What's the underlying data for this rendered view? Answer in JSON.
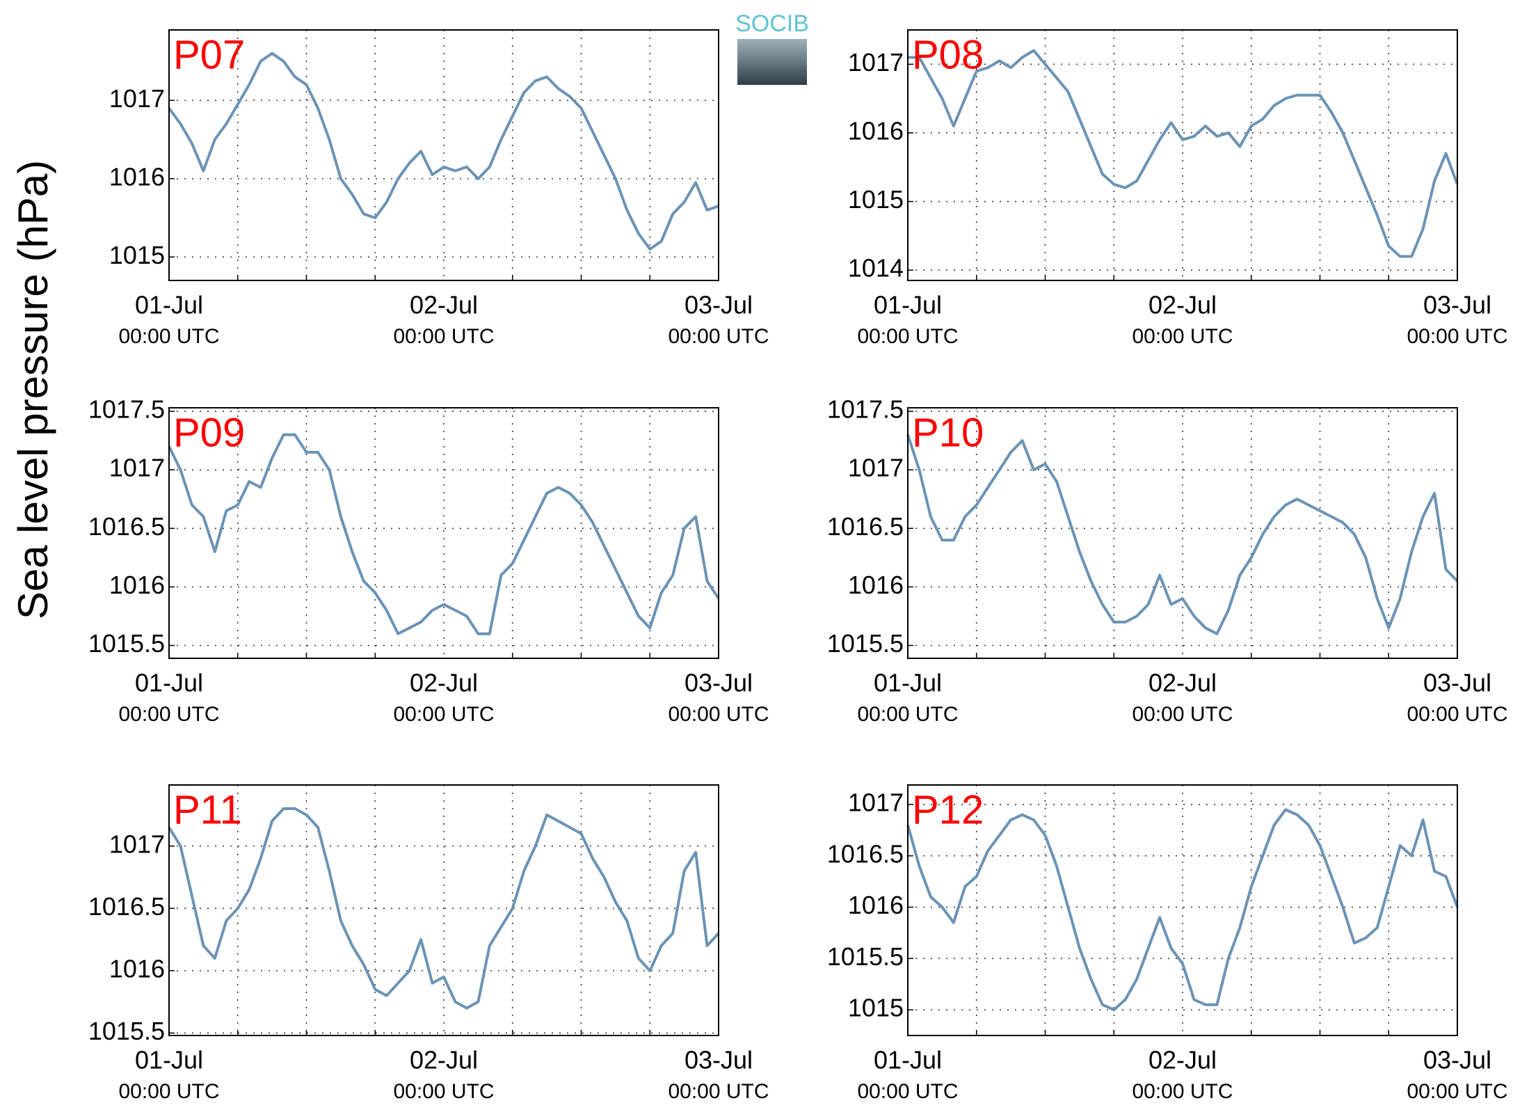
{
  "ylabel": "Sea level pressure (hPa)",
  "logo": "SOCIB",
  "chart_data": [
    {
      "type": "line",
      "title": "P07",
      "color": "#6b93b5",
      "x": [
        0,
        1,
        2,
        3,
        4,
        5,
        6,
        7,
        8,
        9,
        10,
        11,
        12,
        13,
        14,
        15,
        16,
        17,
        18,
        19,
        20,
        21,
        22,
        23,
        24,
        25,
        26,
        27,
        28,
        29,
        30,
        31,
        32,
        33,
        34,
        35,
        36,
        37,
        38,
        39,
        40,
        41,
        42,
        43,
        44,
        45,
        46,
        47,
        48
      ],
      "values": [
        1016.9,
        1016.7,
        1016.45,
        1016.1,
        1016.5,
        1016.7,
        1016.95,
        1017.2,
        1017.5,
        1017.6,
        1017.5,
        1017.3,
        1017.2,
        1016.9,
        1016.5,
        1016.0,
        1015.8,
        1015.55,
        1015.5,
        1015.7,
        1016.0,
        1016.2,
        1016.35,
        1016.05,
        1016.15,
        1016.1,
        1016.15,
        1016.0,
        1016.15,
        1016.5,
        1016.8,
        1017.1,
        1017.25,
        1017.3,
        1017.15,
        1017.05,
        1016.9,
        1016.6,
        1016.3,
        1016.0,
        1015.6,
        1015.3,
        1015.1,
        1015.2,
        1015.55,
        1015.7,
        1015.95,
        1015.6,
        1015.65
      ],
      "xlim": [
        0,
        48
      ],
      "xticks": [
        {
          "value": 0,
          "label": "01-Jul"
        },
        {
          "value": 24,
          "label": "02-Jul"
        },
        {
          "value": 48,
          "label": "03-Jul"
        }
      ],
      "xtick_sublabels": [
        "00:00 UTC",
        "00:00 UTC",
        "00:00 UTC"
      ],
      "xminor": [
        6,
        12,
        18,
        30,
        36,
        42
      ],
      "ylim": [
        1014.7,
        1017.9
      ],
      "yticks": [
        1015,
        1016,
        1017
      ],
      "grid": true
    },
    {
      "type": "line",
      "title": "P08",
      "color": "#6b93b5",
      "x": [
        0,
        1,
        2,
        3,
        4,
        5,
        6,
        7,
        8,
        9,
        10,
        11,
        12,
        13,
        14,
        15,
        16,
        17,
        18,
        19,
        20,
        21,
        22,
        23,
        24,
        25,
        26,
        27,
        28,
        29,
        30,
        31,
        32,
        33,
        34,
        35,
        36,
        37,
        38,
        39,
        40,
        41,
        42,
        43,
        44,
        45,
        46,
        47,
        48
      ],
      "values": [
        1017.1,
        1017.1,
        1016.8,
        1016.5,
        1016.1,
        1016.5,
        1016.9,
        1016.95,
        1017.05,
        1016.95,
        1017.1,
        1017.2,
        1017.0,
        1016.8,
        1016.6,
        1016.2,
        1015.8,
        1015.4,
        1015.25,
        1015.2,
        1015.3,
        1015.6,
        1015.9,
        1016.15,
        1015.9,
        1015.95,
        1016.1,
        1015.95,
        1016.0,
        1015.8,
        1016.1,
        1016.2,
        1016.4,
        1016.5,
        1016.55,
        1016.55,
        1016.55,
        1016.3,
        1016.0,
        1015.6,
        1015.2,
        1014.8,
        1014.35,
        1014.2,
        1014.2,
        1014.6,
        1015.3,
        1015.7,
        1015.25
      ],
      "xlim": [
        0,
        48
      ],
      "xticks": [
        {
          "value": 0,
          "label": "01-Jul"
        },
        {
          "value": 24,
          "label": "02-Jul"
        },
        {
          "value": 48,
          "label": "03-Jul"
        }
      ],
      "xtick_sublabels": [
        "00:00 UTC",
        "00:00 UTC",
        "00:00 UTC"
      ],
      "xminor": [
        6,
        12,
        18,
        30,
        36,
        42
      ],
      "ylim": [
        1013.85,
        1017.5
      ],
      "yticks": [
        1014,
        1015,
        1016,
        1017
      ],
      "grid": true
    },
    {
      "type": "line",
      "title": "P09",
      "color": "#6b93b5",
      "x": [
        0,
        1,
        2,
        3,
        4,
        5,
        6,
        7,
        8,
        9,
        10,
        11,
        12,
        13,
        14,
        15,
        16,
        17,
        18,
        19,
        20,
        21,
        22,
        23,
        24,
        25,
        26,
        27,
        28,
        29,
        30,
        31,
        32,
        33,
        34,
        35,
        36,
        37,
        38,
        39,
        40,
        41,
        42,
        43,
        44,
        45,
        46,
        47,
        48
      ],
      "values": [
        1017.2,
        1017.0,
        1016.7,
        1016.6,
        1016.3,
        1016.65,
        1016.7,
        1016.9,
        1016.85,
        1017.1,
        1017.3,
        1017.3,
        1017.15,
        1017.15,
        1017.0,
        1016.6,
        1016.3,
        1016.05,
        1015.95,
        1015.8,
        1015.6,
        1015.65,
        1015.7,
        1015.8,
        1015.85,
        1015.8,
        1015.75,
        1015.6,
        1015.6,
        1016.1,
        1016.2,
        1016.4,
        1016.6,
        1016.8,
        1016.85,
        1016.8,
        1016.7,
        1016.55,
        1016.35,
        1016.15,
        1015.95,
        1015.75,
        1015.65,
        1015.95,
        1016.1,
        1016.5,
        1016.6,
        1016.05,
        1015.9
      ],
      "xlim": [
        0,
        48
      ],
      "xticks": [
        {
          "value": 0,
          "label": "01-Jul"
        },
        {
          "value": 24,
          "label": "02-Jul"
        },
        {
          "value": 48,
          "label": "03-Jul"
        }
      ],
      "xtick_sublabels": [
        "00:00 UTC",
        "00:00 UTC",
        "00:00 UTC"
      ],
      "xminor": [
        6,
        12,
        18,
        30,
        36,
        42
      ],
      "ylim": [
        1015.39,
        1017.53
      ],
      "yticks": [
        1015.5,
        1016,
        1016.5,
        1017,
        1017.5
      ],
      "grid": true
    },
    {
      "type": "line",
      "title": "P10",
      "color": "#6b93b5",
      "x": [
        0,
        1,
        2,
        3,
        4,
        5,
        6,
        7,
        8,
        9,
        10,
        11,
        12,
        13,
        14,
        15,
        16,
        17,
        18,
        19,
        20,
        21,
        22,
        23,
        24,
        25,
        26,
        27,
        28,
        29,
        30,
        31,
        32,
        33,
        34,
        35,
        36,
        37,
        38,
        39,
        40,
        41,
        42,
        43,
        44,
        45,
        46,
        47,
        48
      ],
      "values": [
        1017.3,
        1017.0,
        1016.6,
        1016.4,
        1016.4,
        1016.6,
        1016.7,
        1016.85,
        1017.0,
        1017.15,
        1017.25,
        1017.0,
        1017.05,
        1016.9,
        1016.6,
        1016.3,
        1016.05,
        1015.85,
        1015.7,
        1015.7,
        1015.75,
        1015.85,
        1016.1,
        1015.85,
        1015.9,
        1015.75,
        1015.65,
        1015.6,
        1015.8,
        1016.1,
        1016.25,
        1016.45,
        1016.6,
        1016.7,
        1016.75,
        1016.7,
        1016.65,
        1016.6,
        1016.55,
        1016.45,
        1016.25,
        1015.9,
        1015.65,
        1015.9,
        1016.3,
        1016.6,
        1016.8,
        1016.15,
        1016.05
      ],
      "xlim": [
        0,
        48
      ],
      "xticks": [
        {
          "value": 0,
          "label": "01-Jul"
        },
        {
          "value": 24,
          "label": "02-Jul"
        },
        {
          "value": 48,
          "label": "03-Jul"
        }
      ],
      "xtick_sublabels": [
        "00:00 UTC",
        "00:00 UTC",
        "00:00 UTC"
      ],
      "xminor": [
        6,
        12,
        18,
        30,
        36,
        42
      ],
      "ylim": [
        1015.39,
        1017.53
      ],
      "yticks": [
        1015.5,
        1016,
        1016.5,
        1017,
        1017.5
      ],
      "grid": true
    },
    {
      "type": "line",
      "title": "P11",
      "color": "#6b93b5",
      "x": [
        0,
        1,
        2,
        3,
        4,
        5,
        6,
        7,
        8,
        9,
        10,
        11,
        12,
        13,
        14,
        15,
        16,
        17,
        18,
        19,
        20,
        21,
        22,
        23,
        24,
        25,
        26,
        27,
        28,
        29,
        30,
        31,
        32,
        33,
        34,
        35,
        36,
        37,
        38,
        39,
        40,
        41,
        42,
        43,
        44,
        45,
        46,
        47,
        48
      ],
      "values": [
        1017.15,
        1017.0,
        1016.6,
        1016.2,
        1016.1,
        1016.4,
        1016.5,
        1016.65,
        1016.9,
        1017.2,
        1017.3,
        1017.3,
        1017.25,
        1017.15,
        1016.8,
        1016.4,
        1016.2,
        1016.05,
        1015.85,
        1015.8,
        1015.9,
        1016.0,
        1016.25,
        1015.9,
        1015.95,
        1015.75,
        1015.7,
        1015.75,
        1016.2,
        1016.35,
        1016.5,
        1016.8,
        1017.0,
        1017.25,
        1017.2,
        1017.15,
        1017.1,
        1016.9,
        1016.75,
        1016.55,
        1016.4,
        1016.1,
        1016.0,
        1016.2,
        1016.3,
        1016.8,
        1016.95,
        1016.2,
        1016.3
      ],
      "xlim": [
        0,
        48
      ],
      "xticks": [
        {
          "value": 0,
          "label": "01-Jul"
        },
        {
          "value": 24,
          "label": "02-Jul"
        },
        {
          "value": 48,
          "label": "03-Jul"
        }
      ],
      "xtick_sublabels": [
        "00:00 UTC",
        "00:00 UTC",
        "00:00 UTC"
      ],
      "xminor": [
        6,
        12,
        18,
        30,
        36,
        42
      ],
      "ylim": [
        1015.48,
        1017.49
      ],
      "yticks": [
        1015.5,
        1016,
        1016.5,
        1017
      ],
      "grid": true
    },
    {
      "type": "line",
      "title": "P12",
      "color": "#6b93b5",
      "x": [
        0,
        1,
        2,
        3,
        4,
        5,
        6,
        7,
        8,
        9,
        10,
        11,
        12,
        13,
        14,
        15,
        16,
        17,
        18,
        19,
        20,
        21,
        22,
        23,
        24,
        25,
        26,
        27,
        28,
        29,
        30,
        31,
        32,
        33,
        34,
        35,
        36,
        37,
        38,
        39,
        40,
        41,
        42,
        43,
        44,
        45,
        46,
        47,
        48
      ],
      "values": [
        1016.8,
        1016.4,
        1016.1,
        1016.0,
        1015.85,
        1016.2,
        1016.3,
        1016.55,
        1016.7,
        1016.85,
        1016.9,
        1016.85,
        1016.7,
        1016.4,
        1016.0,
        1015.6,
        1015.3,
        1015.05,
        1015.0,
        1015.1,
        1015.3,
        1015.6,
        1015.9,
        1015.6,
        1015.45,
        1015.1,
        1015.05,
        1015.05,
        1015.5,
        1015.8,
        1016.2,
        1016.5,
        1016.8,
        1016.95,
        1016.9,
        1016.8,
        1016.6,
        1016.3,
        1016.0,
        1015.65,
        1015.7,
        1015.8,
        1016.2,
        1016.6,
        1016.5,
        1016.85,
        1016.35,
        1016.3,
        1016.0
      ],
      "xlim": [
        0,
        48
      ],
      "xticks": [
        {
          "value": 0,
          "label": "01-Jul"
        },
        {
          "value": 24,
          "label": "02-Jul"
        },
        {
          "value": 48,
          "label": "03-Jul"
        }
      ],
      "xtick_sublabels": [
        "00:00 UTC",
        "00:00 UTC",
        "00:00 UTC"
      ],
      "xminor": [
        6,
        12,
        18,
        30,
        36,
        42
      ],
      "ylim": [
        1014.75,
        1017.19
      ],
      "yticks": [
        1015,
        1015.5,
        1016,
        1016.5,
        1017
      ],
      "grid": true
    }
  ]
}
